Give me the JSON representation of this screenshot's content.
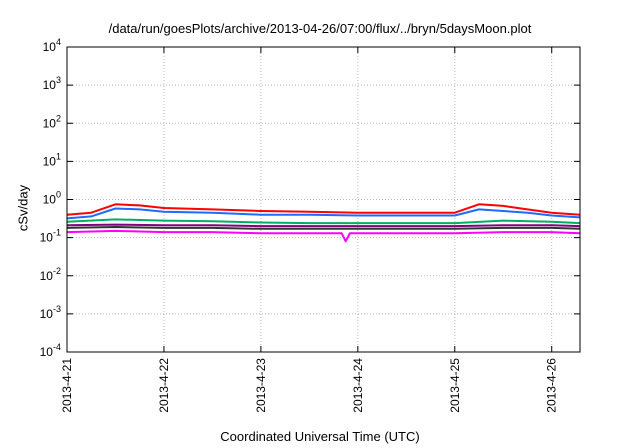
{
  "chart_data": {
    "type": "line",
    "title": "/data/run/goesPlots/archive/2013-04-26/07:00/flux/../bryn/5daysMoon.plot",
    "xlabel": "Coordinated Universal Time (UTC)",
    "ylabel": "cSv/day",
    "y_scale": "log",
    "ylim": [
      0.0001,
      10000
    ],
    "y_ticks": [
      {
        "value": 0.0001,
        "base": "10",
        "exp": "-4"
      },
      {
        "value": 0.001,
        "base": "10",
        "exp": "-3"
      },
      {
        "value": 0.01,
        "base": "10",
        "exp": "-2"
      },
      {
        "value": 0.1,
        "base": "10",
        "exp": "-1"
      },
      {
        "value": 1,
        "base": "10",
        "exp": "0"
      },
      {
        "value": 10,
        "base": "10",
        "exp": "1"
      },
      {
        "value": 100,
        "base": "10",
        "exp": "2"
      },
      {
        "value": 1000,
        "base": "10",
        "exp": "3"
      },
      {
        "value": 10000,
        "base": "10",
        "exp": "4"
      }
    ],
    "xlim": [
      "2013-04-21",
      "2013-04-26T07:00"
    ],
    "x_ticks": [
      "2013-4-21",
      "2013-4-22",
      "2013-4-23",
      "2013-4-24",
      "2013-4-25",
      "2013-4-26"
    ],
    "grid": true,
    "series": [
      {
        "color": "#ff0000",
        "x": [
          "2013-04-21T00:00",
          "2013-04-21T06:00",
          "2013-04-21T12:00",
          "2013-04-21T18:00",
          "2013-04-22T00:00",
          "2013-04-22T12:00",
          "2013-04-23T00:00",
          "2013-04-23T12:00",
          "2013-04-24T00:00",
          "2013-04-24T12:00",
          "2013-04-25T00:00",
          "2013-04-25T06:00",
          "2013-04-25T12:00",
          "2013-04-25T18:00",
          "2013-04-26T00:00",
          "2013-04-26T07:00"
        ],
        "values": [
          0.4,
          0.45,
          0.75,
          0.7,
          0.6,
          0.55,
          0.5,
          0.48,
          0.45,
          0.45,
          0.45,
          0.75,
          0.68,
          0.55,
          0.45,
          0.4
        ]
      },
      {
        "color": "#1e6bff",
        "x": [
          "2013-04-21T00:00",
          "2013-04-21T06:00",
          "2013-04-21T12:00",
          "2013-04-21T18:00",
          "2013-04-22T00:00",
          "2013-04-22T12:00",
          "2013-04-23T00:00",
          "2013-04-23T12:00",
          "2013-04-24T00:00",
          "2013-04-24T12:00",
          "2013-04-25T00:00",
          "2013-04-25T06:00",
          "2013-04-25T12:00",
          "2013-04-25T18:00",
          "2013-04-26T00:00",
          "2013-04-26T07:00"
        ],
        "values": [
          0.32,
          0.36,
          0.58,
          0.55,
          0.48,
          0.45,
          0.4,
          0.4,
          0.38,
          0.38,
          0.38,
          0.55,
          0.5,
          0.45,
          0.38,
          0.34
        ]
      },
      {
        "color": "#00b060",
        "x": [
          "2013-04-21T00:00",
          "2013-04-21T12:00",
          "2013-04-22T00:00",
          "2013-04-22T12:00",
          "2013-04-23T00:00",
          "2013-04-23T12:00",
          "2013-04-24T00:00",
          "2013-04-24T12:00",
          "2013-04-25T00:00",
          "2013-04-25T12:00",
          "2013-04-26T00:00",
          "2013-04-26T07:00"
        ],
        "values": [
          0.26,
          0.3,
          0.28,
          0.27,
          0.25,
          0.24,
          0.24,
          0.24,
          0.24,
          0.28,
          0.26,
          0.24
        ]
      },
      {
        "color": "#800080",
        "x": [
          "2013-04-21T00:00",
          "2013-04-21T12:00",
          "2013-04-22T00:00",
          "2013-04-22T12:00",
          "2013-04-23T00:00",
          "2013-04-23T12:00",
          "2013-04-24T00:00",
          "2013-04-24T12:00",
          "2013-04-25T00:00",
          "2013-04-25T12:00",
          "2013-04-26T00:00",
          "2013-04-26T07:00"
        ],
        "values": [
          0.21,
          0.22,
          0.21,
          0.21,
          0.2,
          0.2,
          0.2,
          0.2,
          0.2,
          0.21,
          0.21,
          0.2
        ]
      },
      {
        "color": "#333333",
        "x": [
          "2013-04-21T00:00",
          "2013-04-21T12:00",
          "2013-04-22T00:00",
          "2013-04-22T12:00",
          "2013-04-23T00:00",
          "2013-04-23T12:00",
          "2013-04-24T00:00",
          "2013-04-24T12:00",
          "2013-04-25T00:00",
          "2013-04-25T12:00",
          "2013-04-26T00:00",
          "2013-04-26T07:00"
        ],
        "values": [
          0.18,
          0.19,
          0.18,
          0.18,
          0.17,
          0.17,
          0.17,
          0.17,
          0.17,
          0.18,
          0.18,
          0.17
        ]
      },
      {
        "color": "#ff00ff",
        "x": [
          "2013-04-21T00:00",
          "2013-04-21T12:00",
          "2013-04-22T00:00",
          "2013-04-22T12:00",
          "2013-04-23T00:00",
          "2013-04-23T12:00",
          "2013-04-23T20:00",
          "2013-04-23T21:00",
          "2013-04-23T22:00",
          "2013-04-24T12:00",
          "2013-04-25T00:00",
          "2013-04-25T12:00",
          "2013-04-26T00:00",
          "2013-04-26T07:00"
        ],
        "values": [
          0.14,
          0.15,
          0.14,
          0.14,
          0.13,
          0.13,
          0.13,
          0.08,
          0.13,
          0.13,
          0.13,
          0.14,
          0.14,
          0.13
        ]
      }
    ]
  }
}
